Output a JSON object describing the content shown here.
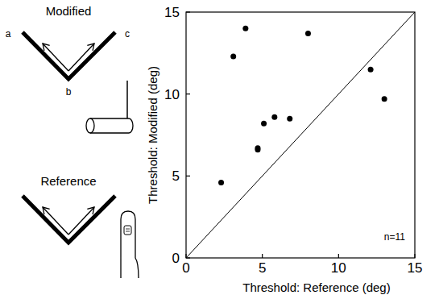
{
  "chart_data": {
    "type": "scatter",
    "x_label": "Threshold: Reference (deg)",
    "y_label": "Threshold: Modified (deg)",
    "annotation": "n=11",
    "x": [
      2.3,
      3.1,
      3.9,
      4.7,
      4.7,
      5.1,
      5.8,
      6.8,
      8.0,
      12.1,
      13.0
    ],
    "values": [
      4.6,
      12.3,
      14.0,
      6.6,
      6.7,
      8.2,
      8.6,
      8.5,
      13.7,
      11.5,
      9.7
    ],
    "color": "#000000",
    "marker": "circle",
    "xlim": [
      0,
      15
    ],
    "ylim": [
      0,
      15
    ],
    "xticks": [
      0,
      5,
      10,
      15
    ],
    "yticks": [
      0,
      5,
      10,
      15
    ],
    "grid": false
  },
  "diagram": {
    "panels": [
      {
        "label": "Modified",
        "vertices": [
          "a",
          "b",
          "c"
        ]
      },
      {
        "label": "Reference"
      }
    ]
  }
}
